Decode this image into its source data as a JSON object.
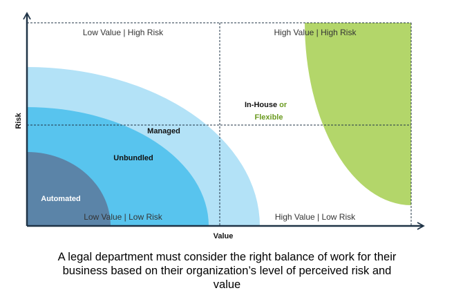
{
  "diagram": {
    "axes": {
      "x_label": "Value",
      "y_label": "Risk"
    },
    "quadrants": {
      "top_left": "Low Value | High Risk",
      "top_right": "High Value | High Risk",
      "bottom_left": "Low Value | Low Risk",
      "bottom_right": "High Value | Low Risk"
    },
    "regions": {
      "automated": "Automated",
      "unbundled": "Unbundled",
      "managed": "Managed",
      "in_house": "In-House",
      "or": "or",
      "flexible": "Flexible"
    },
    "colors": {
      "managed": "#b3e2f7",
      "unbundled": "#58c4ee",
      "automated": "#5b84a8",
      "in_house_flexible": "#b3d66a",
      "axis": "#1f3346",
      "green_text": "#6a9a1f"
    }
  },
  "caption": {
    "line1": "A legal department must consider the right balance of work for their",
    "line2": "business based on their organization’s level of perceived risk and",
    "line3": "value"
  }
}
